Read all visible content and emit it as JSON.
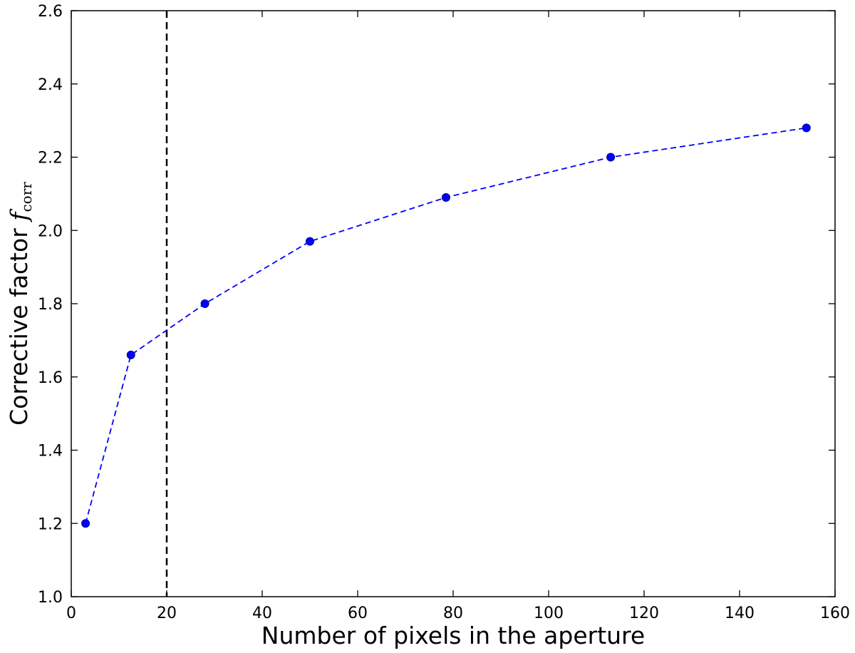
{
  "chart_data": {
    "type": "line",
    "title": "",
    "xlabel": "Number of pixels in the aperture",
    "ylabel": "Corrective factor",
    "ylabel_symbol": "f",
    "ylabel_subscript": "corr",
    "xlim": [
      0,
      160
    ],
    "ylim": [
      1.0,
      2.6
    ],
    "xticks": [
      "0",
      "20",
      "40",
      "60",
      "80",
      "100",
      "120",
      "140",
      "160"
    ],
    "yticks": [
      "1.0",
      "1.2",
      "1.4",
      "1.6",
      "1.8",
      "2.0",
      "2.2",
      "2.4",
      "2.6"
    ],
    "grid": false,
    "series": [
      {
        "line_style": "dashed",
        "marker": "circle",
        "color": "#0000ff",
        "x": [
          3,
          12.5,
          28,
          50,
          78.5,
          113,
          154
        ],
        "y": [
          1.2,
          1.66,
          1.8,
          1.97,
          2.09,
          2.2,
          2.28
        ]
      }
    ],
    "vertical_line": {
      "x": 20,
      "style": "dashed",
      "color": "#000000"
    }
  }
}
